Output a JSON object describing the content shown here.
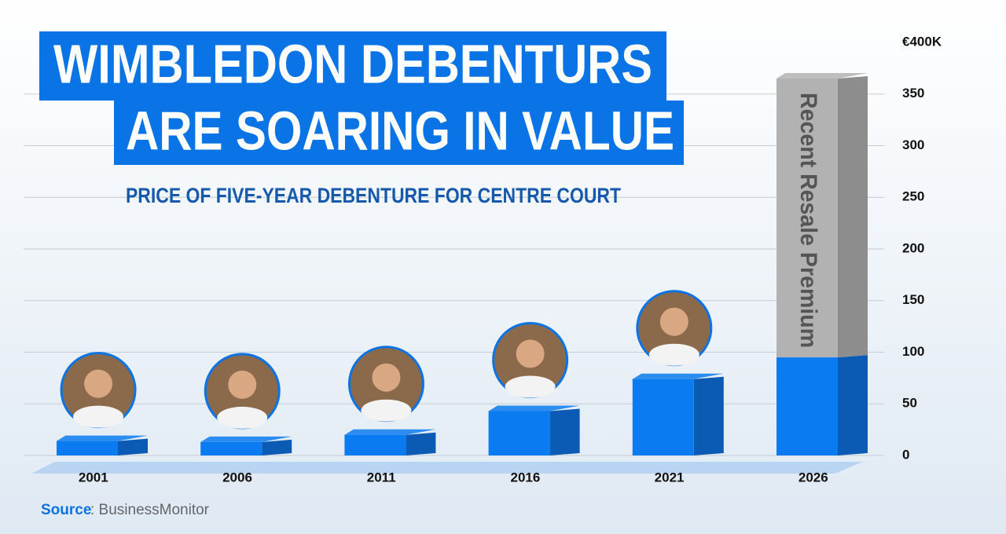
{
  "chart_data": {
    "type": "bar3d_stacked",
    "title": [
      "WIMBLEDON DEBENTURS",
      "ARE SOARING IN VALUE"
    ],
    "subtitle": "PRICE OF FIVE-YEAR DEBENTURE FOR CENTRE COURT",
    "categories": [
      "2001",
      "2006",
      "2011",
      "2016",
      "2021",
      "2026"
    ],
    "series": [
      {
        "color": "#0a7bf0",
        "side_color": "#0b5bb5",
        "values": [
          14,
          13,
          20,
          43,
          74,
          95
        ]
      },
      {
        "name": "Recent Resale Premium",
        "color": "#b2b2b2",
        "side_color": "#8d8d8d",
        "values": [
          null,
          null,
          null,
          null,
          null,
          270
        ]
      }
    ],
    "ylim": [
      0,
      400
    ],
    "yticks": [
      0,
      50,
      100,
      150,
      200,
      250,
      300,
      350,
      {
        "value": 400,
        "label": "€400K"
      }
    ],
    "grid": true,
    "source_label": "Source",
    "source": ": BusinessMonitor"
  }
}
